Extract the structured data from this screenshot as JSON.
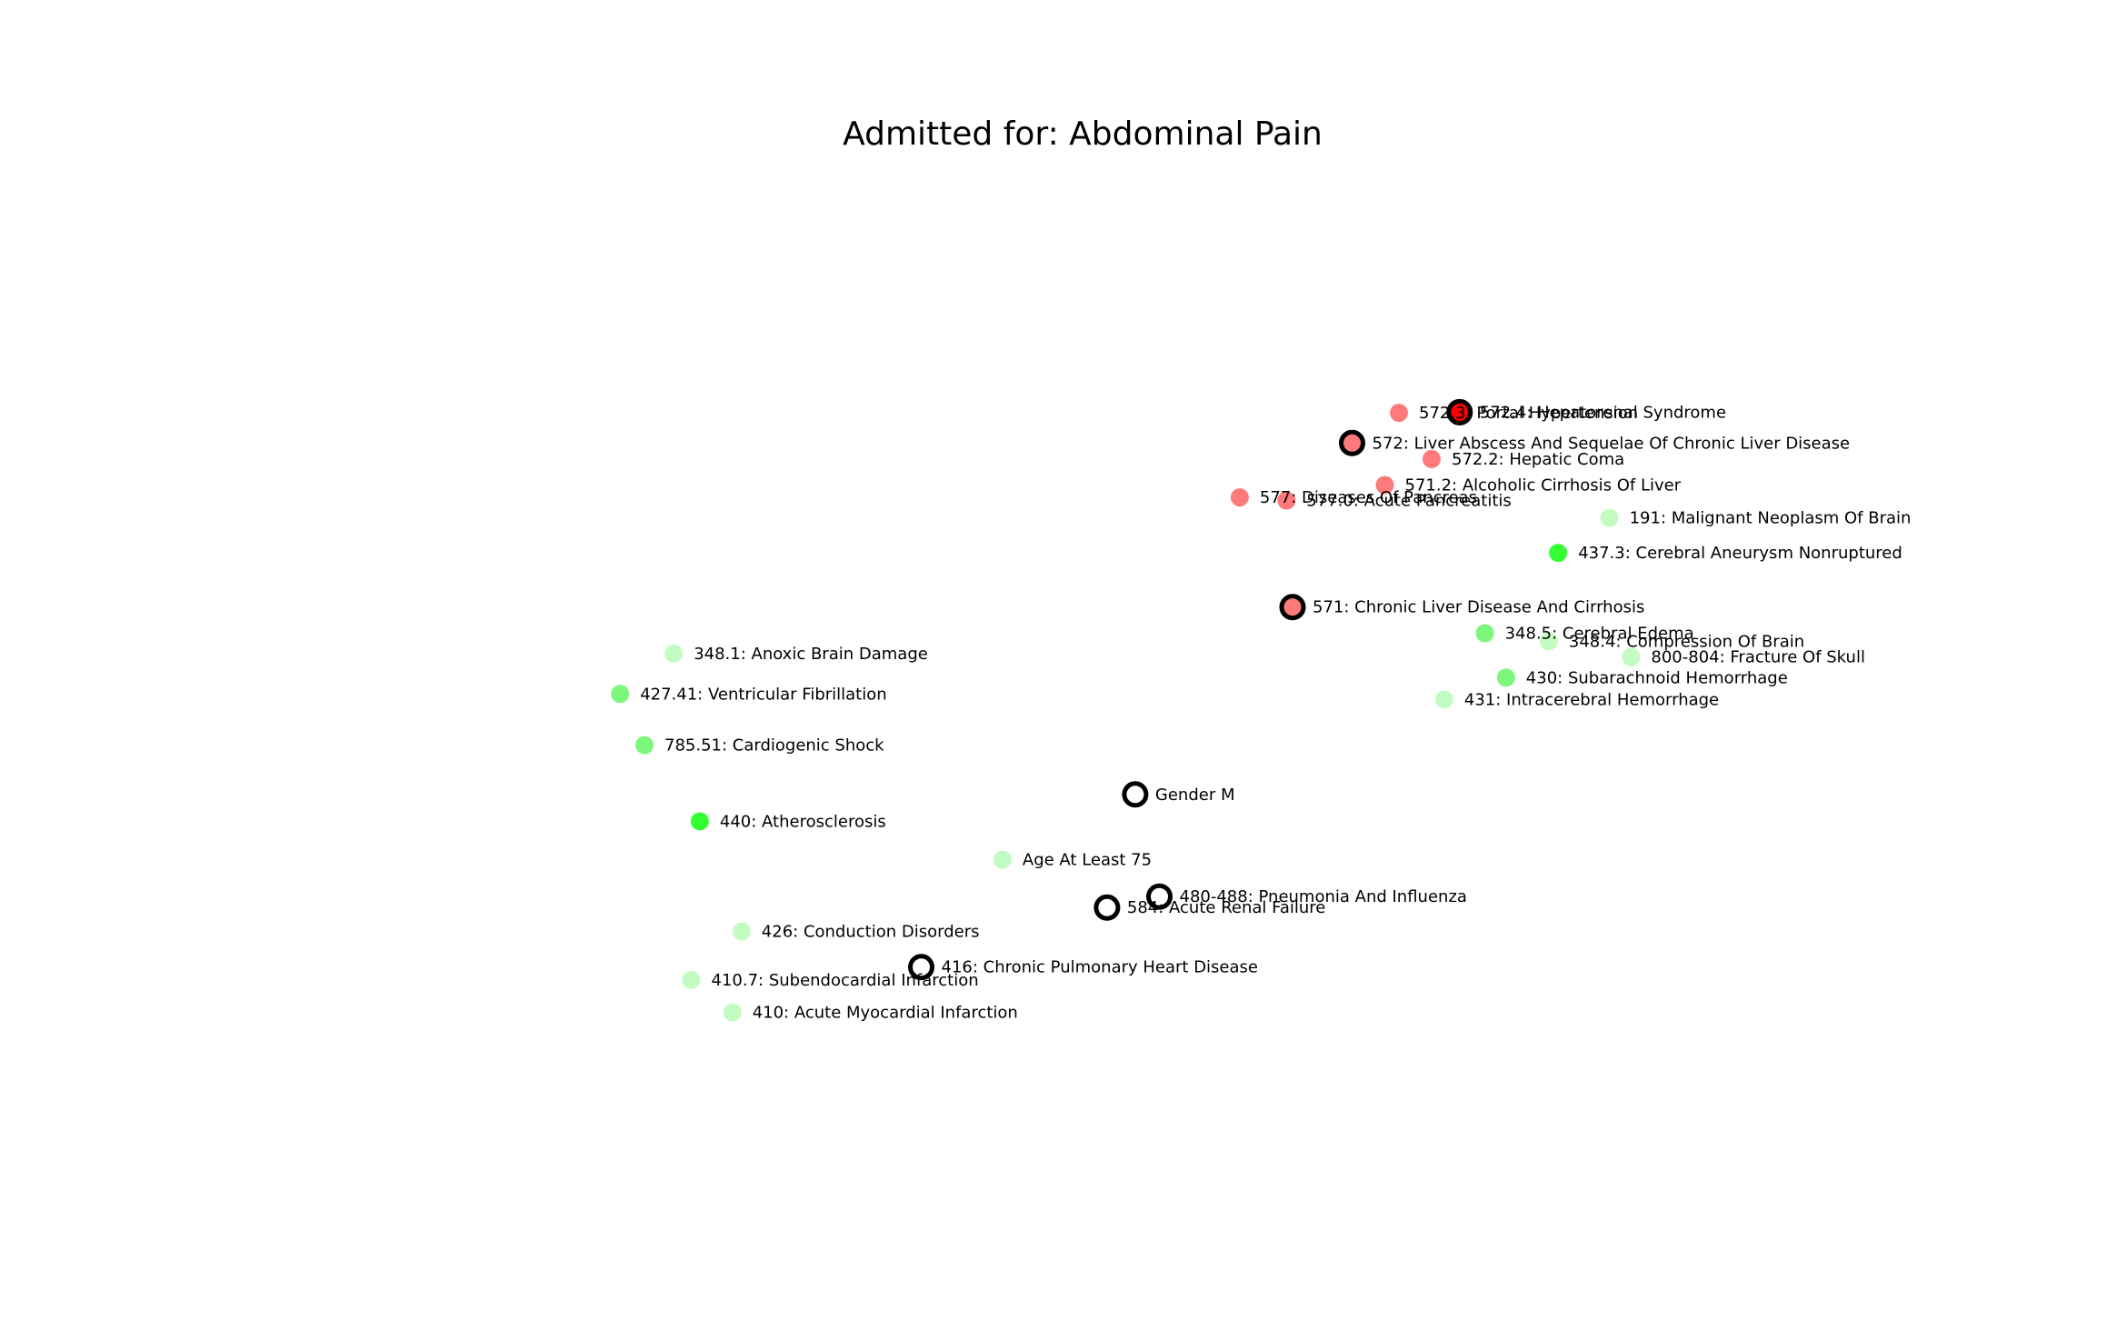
{
  "chart_data": {
    "type": "scatter",
    "title": "Admitted for: Abdominal Pain",
    "xlabel": "",
    "ylabel": "",
    "xlim": [
      0,
      100
    ],
    "ylim": [
      0,
      100
    ],
    "axes_visible": false,
    "grid": false,
    "colors": {
      "red": "#ff7b7b",
      "red_dark": "#ff0000",
      "green_bright": "#33ff33",
      "green_mid": "#7cf77c",
      "green_light": "#c2fcc2",
      "outline": "#000000",
      "hollow": "#ffffff"
    },
    "points": [
      {
        "label": "572.4: Hepatorenal Syndrome",
        "x": 75.62,
        "y": 78.59,
        "color": "red_dark",
        "outlined": true
      },
      {
        "label": "572.3: Portal Hypertension",
        "x": 71.78,
        "y": 78.52,
        "color": "red",
        "outlined": false
      },
      {
        "label": "572: Liver Abscess And Sequelae Of Chronic Liver Disease",
        "x": 68.82,
        "y": 75.48,
        "color": "red",
        "outlined": true
      },
      {
        "label": "572.2: Hepatic Coma",
        "x": 73.85,
        "y": 73.86,
        "color": "red",
        "outlined": false
      },
      {
        "label": "571.2: Alcoholic Cirrhosis Of Liver",
        "x": 70.89,
        "y": 71.24,
        "color": "red",
        "outlined": false
      },
      {
        "label": "577: Diseases Of Pancreas",
        "x": 61.72,
        "y": 69.99,
        "color": "red",
        "outlined": false
      },
      {
        "label": "577.0: Acute Pancreatitis",
        "x": 64.67,
        "y": 69.68,
        "color": "red",
        "outlined": false
      },
      {
        "label": "191: Malignant Neoplasm Of Brain",
        "x": 85.09,
        "y": 67.92,
        "color": "green_light",
        "outlined": false
      },
      {
        "label": "437.3: Cerebral Aneurysm Nonruptured",
        "x": 81.85,
        "y": 64.39,
        "color": "green_bright",
        "outlined": false
      },
      {
        "label": "571: Chronic Liver Disease And Cirrhosis",
        "x": 65.06,
        "y": 58.93,
        "color": "red",
        "outlined": true
      },
      {
        "label": "348.5: Cerebral Edema",
        "x": 77.22,
        "y": 56.28,
        "color": "green_mid",
        "outlined": false
      },
      {
        "label": "348.4: Compression Of Brain",
        "x": 81.26,
        "y": 55.45,
        "color": "green_light",
        "outlined": false
      },
      {
        "label": "800-804: Fracture Of Skull",
        "x": 86.46,
        "y": 53.88,
        "color": "green_light",
        "outlined": false
      },
      {
        "label": "430: Subarachnoid Hemorrhage",
        "x": 78.55,
        "y": 51.81,
        "color": "green_mid",
        "outlined": false
      },
      {
        "label": "431: Intracerebral Hemorrhage",
        "x": 74.65,
        "y": 49.6,
        "color": "green_light",
        "outlined": false
      },
      {
        "label": "348.1: Anoxic Brain Damage",
        "x": 25.93,
        "y": 54.23,
        "color": "green_light",
        "outlined": false
      },
      {
        "label": "427.41: Ventricular Fibrillation",
        "x": 22.54,
        "y": 50.16,
        "color": "green_mid",
        "outlined": false
      },
      {
        "label": "785.51: Cardiogenic Shock",
        "x": 24.08,
        "y": 44.99,
        "color": "green_mid",
        "outlined": false
      },
      {
        "label": "Gender M",
        "x": 55.11,
        "y": 40.02,
        "color": "hollow",
        "outlined": true
      },
      {
        "label": "440: Atherosclerosis",
        "x": 27.58,
        "y": 37.3,
        "color": "green_bright",
        "outlined": false
      },
      {
        "label": "Age At Least 75",
        "x": 46.72,
        "y": 33.43,
        "color": "green_light",
        "outlined": false
      },
      {
        "label": "480-488: Pneumonia And Influenza",
        "x": 56.64,
        "y": 29.71,
        "color": "hollow",
        "outlined": true
      },
      {
        "label": "584: Acute Renal Failure",
        "x": 53.33,
        "y": 28.61,
        "color": "hollow",
        "outlined": true
      },
      {
        "label": "426: Conduction Disorders",
        "x": 30.22,
        "y": 26.19,
        "color": "green_light",
        "outlined": false
      },
      {
        "label": "416: Chronic Pulmonary Heart Disease",
        "x": 41.58,
        "y": 22.6,
        "color": "hollow",
        "outlined": true
      },
      {
        "label": "410.7: Subendocardial Infarction",
        "x": 27.04,
        "y": 21.29,
        "color": "green_light",
        "outlined": false
      },
      {
        "label": "410: Acute Myocardial Infarction",
        "x": 29.64,
        "y": 18.02,
        "color": "green_light",
        "outlined": false
      }
    ]
  }
}
